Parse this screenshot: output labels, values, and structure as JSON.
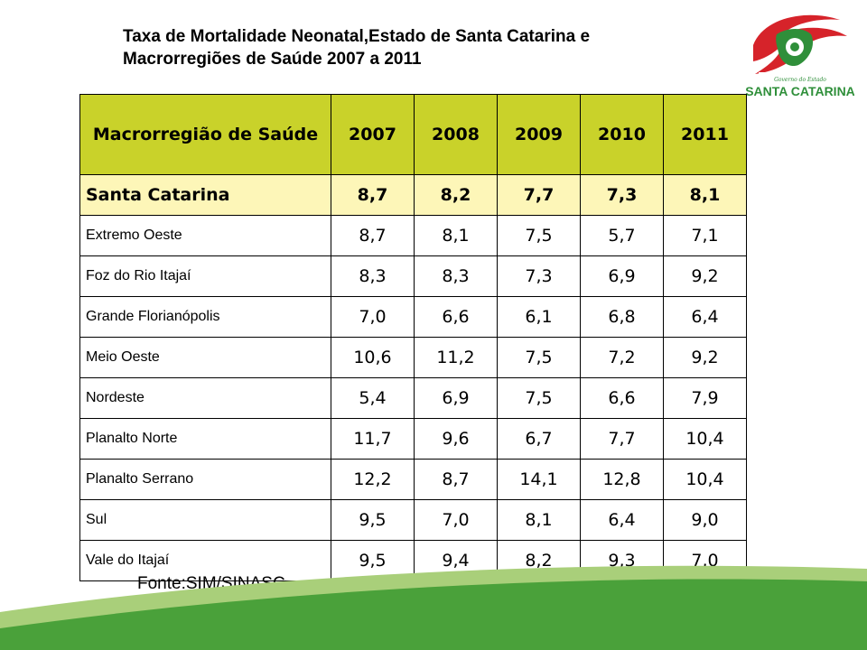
{
  "title_line1": "Taxa de Mortalidade Neonatal,Estado de Santa Catarina e",
  "title_line2": "Macrorregiões de Saúde 2007 a 2011",
  "logo_text": "SANTA CATARINA",
  "logo_subtext": "Governo do Estado",
  "source": "Fonte:SIM/SINASC",
  "colors": {
    "header_bg": "#c9d22a",
    "total_row_bg": "#fdf6b8",
    "wave_green": "#4aa13a",
    "wave_light_green": "#a9cf7a",
    "logo_red": "#d6232a",
    "logo_green": "#2f8f3a"
  },
  "chart_data": {
    "type": "table",
    "header": "Macrorregião de Saúde",
    "columns": [
      "2007",
      "2008",
      "2009",
      "2010",
      "2011"
    ],
    "total": {
      "name": "Santa Catarina",
      "values": [
        "8,7",
        "8,2",
        "7,7",
        "7,3",
        "8,1"
      ]
    },
    "rows": [
      {
        "name": "Extremo Oeste",
        "values": [
          "8,7",
          "8,1",
          "7,5",
          "5,7",
          "7,1"
        ]
      },
      {
        "name": "Foz do Rio Itajaí",
        "values": [
          "8,3",
          "8,3",
          "7,3",
          "6,9",
          "9,2"
        ]
      },
      {
        "name": "Grande Florianópolis",
        "values": [
          "7,0",
          "6,6",
          "6,1",
          "6,8",
          "6,4"
        ]
      },
      {
        "name": "Meio Oeste",
        "values": [
          "10,6",
          "11,2",
          "7,5",
          "7,2",
          "9,2"
        ]
      },
      {
        "name": "Nordeste",
        "values": [
          "5,4",
          "6,9",
          "7,5",
          "6,6",
          "7,9"
        ]
      },
      {
        "name": "Planalto Norte",
        "values": [
          "11,7",
          "9,6",
          "6,7",
          "7,7",
          "10,4"
        ]
      },
      {
        "name": "Planalto Serrano",
        "values": [
          "12,2",
          "8,7",
          "14,1",
          "12,8",
          "10,4"
        ]
      },
      {
        "name": "Sul",
        "values": [
          "9,5",
          "7,0",
          "8,1",
          "6,4",
          "9,0"
        ]
      },
      {
        "name": "Vale do Itajaí",
        "values": [
          "9,5",
          "9,4",
          "8,2",
          "9,3",
          "7,0"
        ]
      }
    ]
  }
}
